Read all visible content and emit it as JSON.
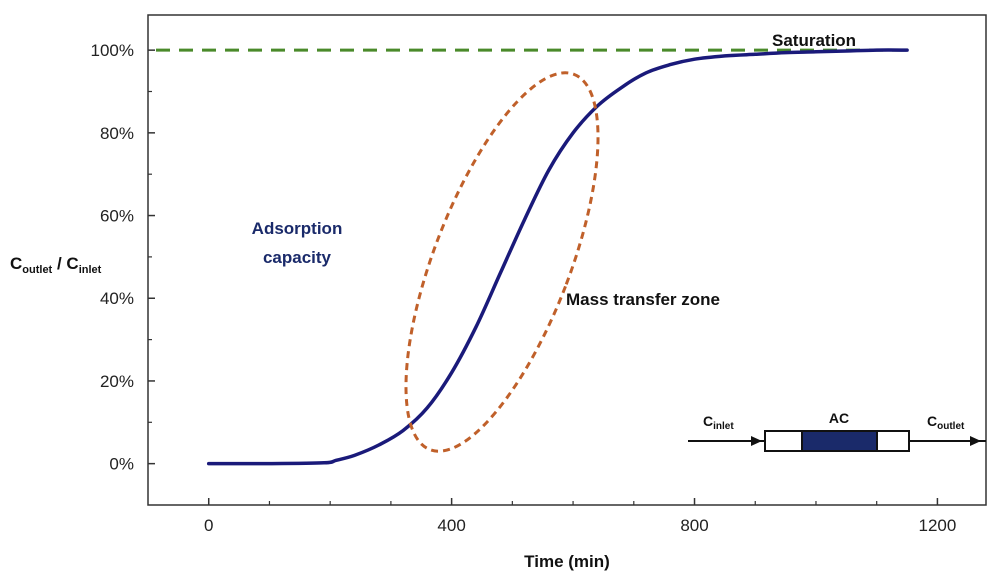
{
  "chart_data": {
    "type": "line",
    "title": "",
    "xlabel": "Time (min)",
    "ylabel": {
      "c1": "C",
      "s1": "outlet",
      "sep": " / ",
      "c2": "C",
      "s2": "inlet"
    },
    "xlim": [
      -100,
      1280
    ],
    "ylim": [
      -0.1,
      1.085
    ],
    "xticks": [
      0,
      400,
      800,
      1200
    ],
    "xtick_labels": [
      "0",
      "400",
      "800",
      "1200"
    ],
    "yticks": [
      0,
      0.2,
      0.4,
      0.6,
      0.8,
      1.0
    ],
    "ytick_labels": [
      "0%",
      "20%",
      "40%",
      "60%",
      "80%",
      "100%"
    ],
    "series": [
      {
        "type": "line",
        "color": "#1a1a7a",
        "x": [
          0,
          100,
          190,
          210,
          240,
          280,
          320,
          360,
          400,
          440,
          480,
          520,
          560,
          600,
          640,
          680,
          720,
          760,
          800,
          850,
          900,
          950,
          1000,
          1050,
          1100,
          1150
        ],
        "y": [
          0,
          0,
          0.002,
          0.008,
          0.02,
          0.045,
          0.08,
          0.135,
          0.22,
          0.33,
          0.46,
          0.59,
          0.71,
          0.8,
          0.865,
          0.91,
          0.945,
          0.965,
          0.978,
          0.986,
          0.99,
          0.994,
          0.996,
          0.998,
          1.0,
          1.0
        ]
      }
    ],
    "reference_line": {
      "y": 1.0,
      "color": "#4a8a2a",
      "style": "dashed"
    },
    "annotations": {
      "saturation": "Saturation",
      "adsorption_line1": "Adsorption",
      "adsorption_line2": "capacity",
      "mass_transfer": "Mass transfer zone"
    },
    "inset": {
      "inlet_c": "C",
      "inlet_sub": "inlet",
      "outlet_c": "C",
      "outlet_sub": "outlet",
      "ac_label": "AC",
      "column_fill": "#1a2a6a"
    },
    "colors": {
      "curve": "#1a1a7a",
      "reference": "#4a8a2a",
      "ellipse": "#c0602a",
      "annotation_blue": "#1a2a6a"
    }
  }
}
